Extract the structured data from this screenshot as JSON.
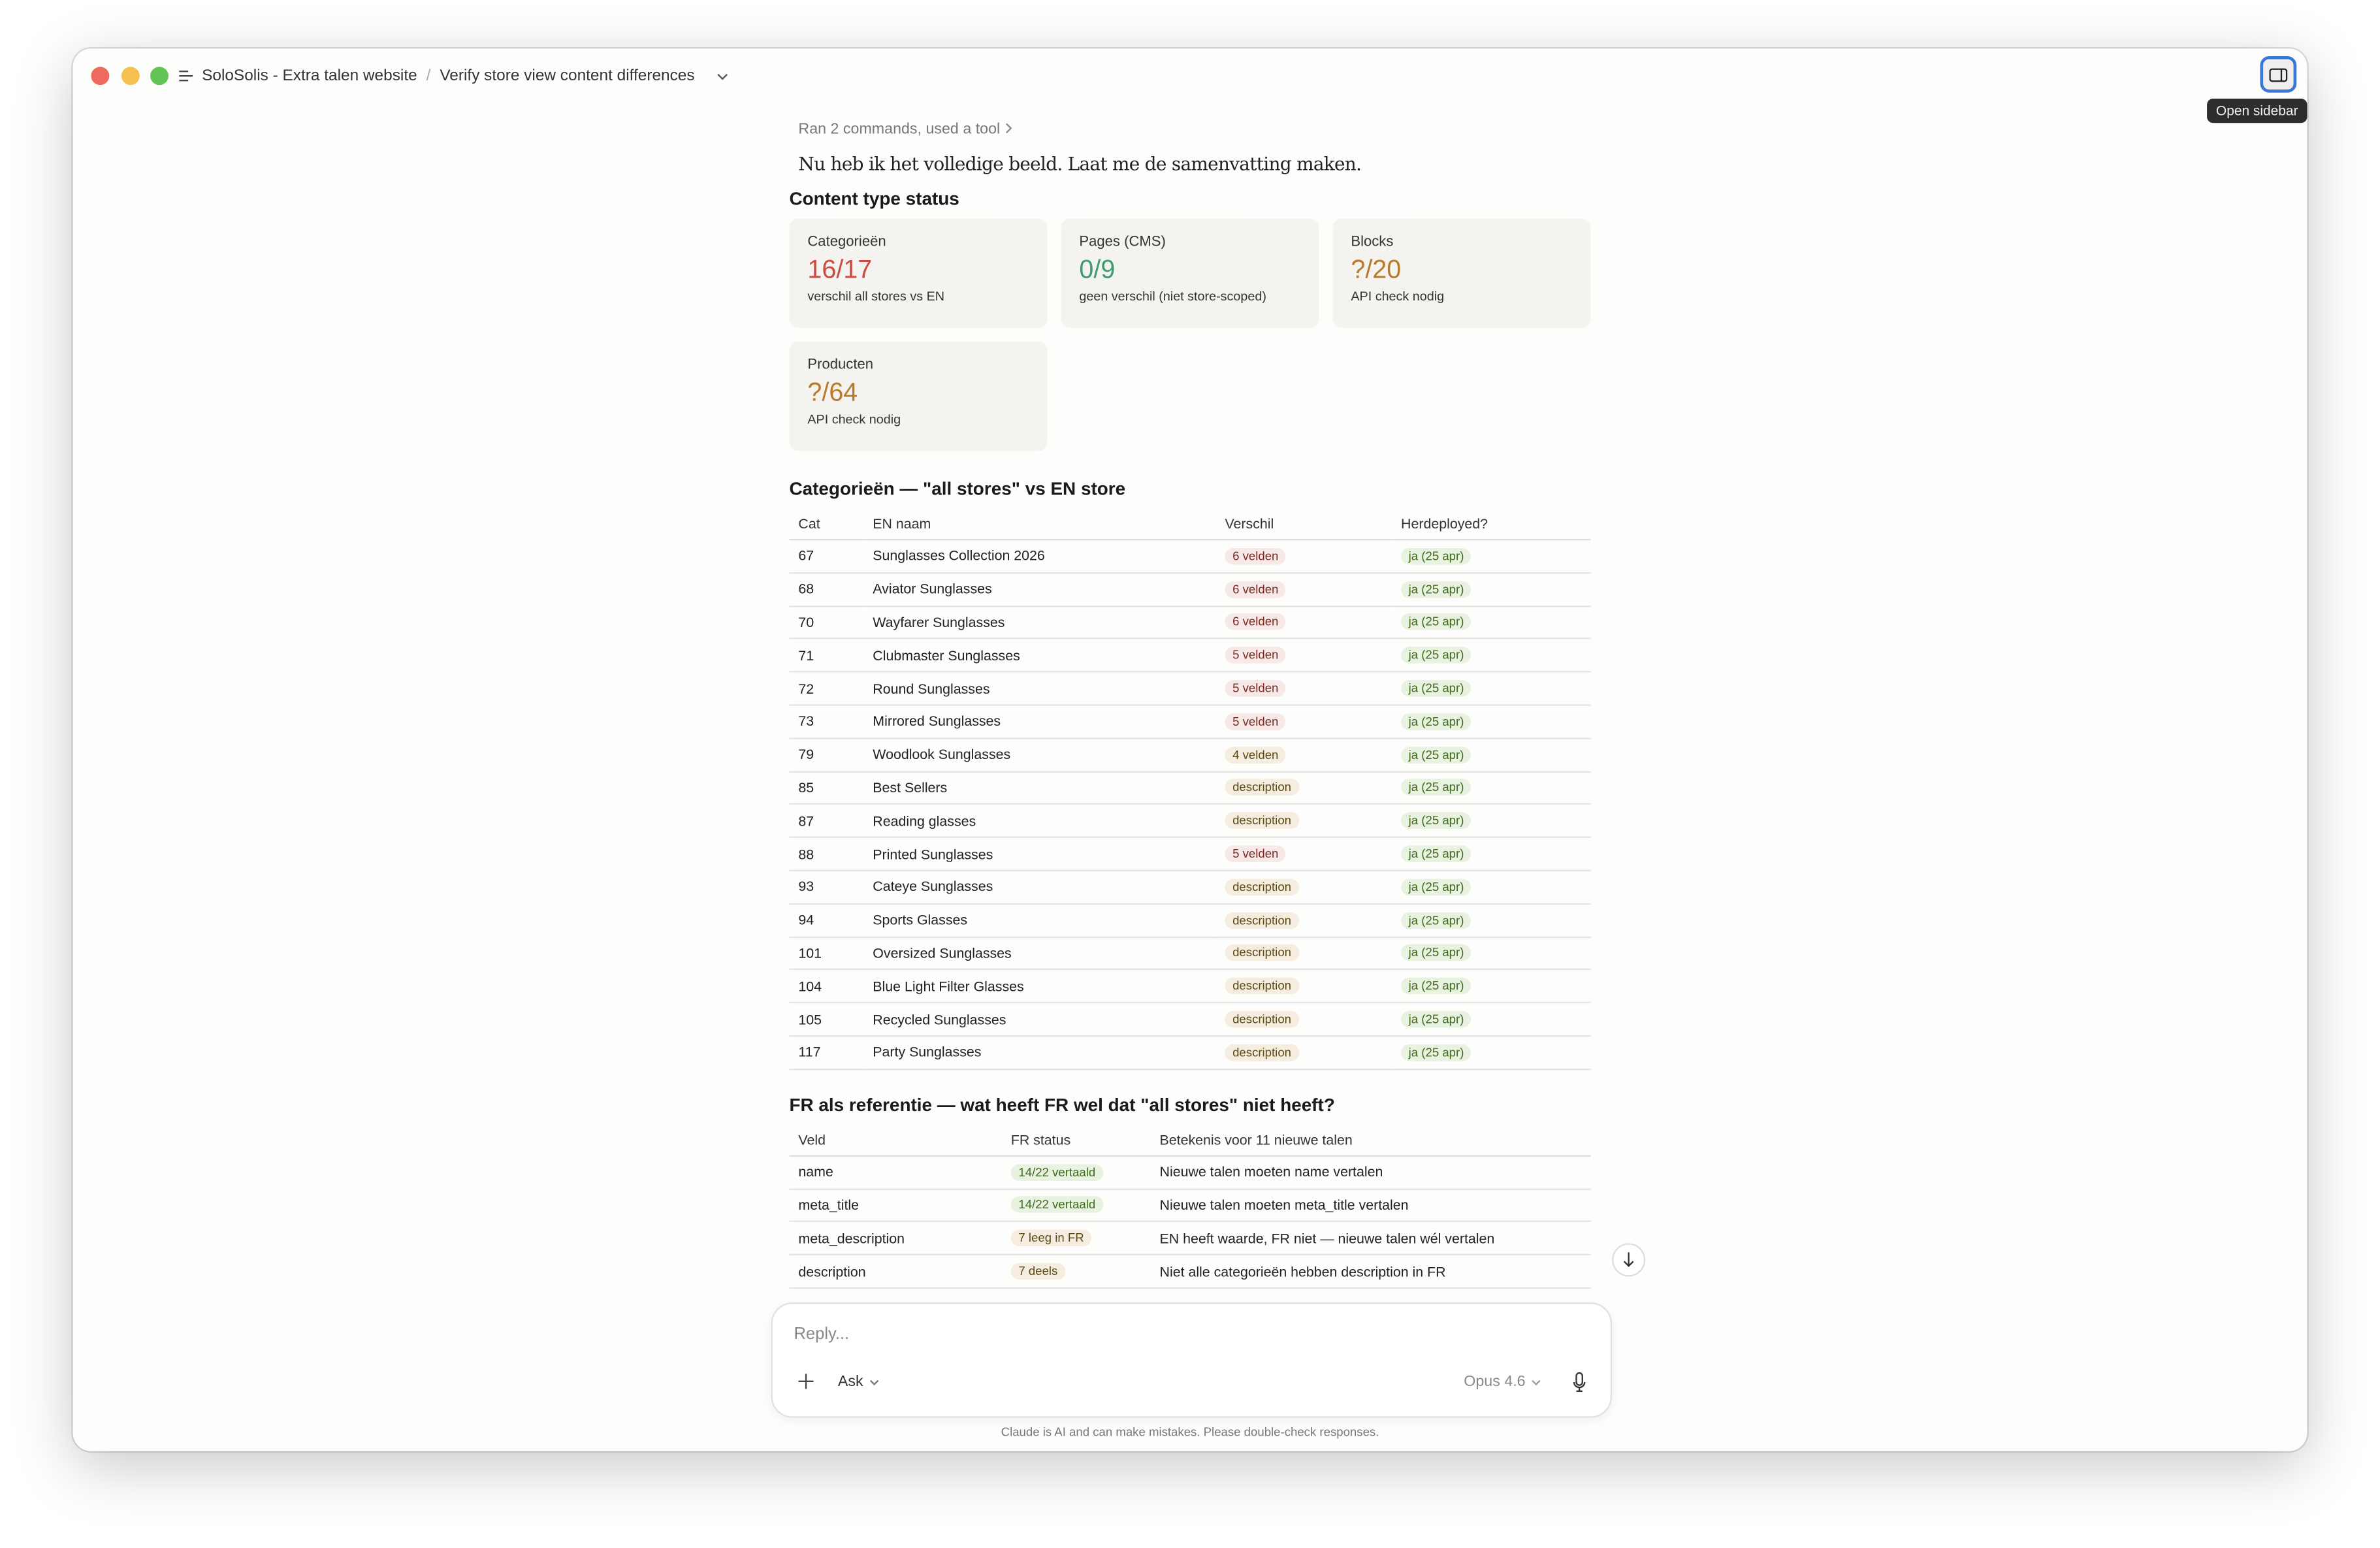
{
  "window": {
    "project": "SoloSolis - Extra talen website",
    "separator": "/",
    "chat_title": "Verify store view content differences",
    "sidebar_tooltip": "Open sidebar"
  },
  "colors": {
    "red": "#cc4a3f",
    "green": "#3f9a6e",
    "amber": "#b87a2a",
    "accent": "#3a78d8"
  },
  "tool_summary": "Ran 2 commands, used a tool",
  "lead": "Nu heb ik het volledige beeld. Laat me de samenvatting maken.",
  "status": {
    "title": "Content type status",
    "cards": [
      {
        "label": "Categorieën",
        "value": "16/17",
        "sub": "verschil all stores vs EN",
        "color": "red"
      },
      {
        "label": "Pages (CMS)",
        "value": "0/9",
        "sub": "geen verschil (niet store-scoped)",
        "color": "green"
      },
      {
        "label": "Blocks",
        "value": "?/20",
        "sub": "API check nodig",
        "color": "amber"
      },
      {
        "label": "Producten",
        "value": "?/64",
        "sub": "API check nodig",
        "color": "amber"
      }
    ]
  },
  "cat_table": {
    "title": "Categorieën — \"all stores\" vs EN store",
    "headers": [
      "Cat",
      "EN naam",
      "Verschil",
      "Herdeployed?"
    ],
    "rows": [
      [
        "67",
        "Sunglasses Collection 2026",
        "6 velden",
        "ja (25 apr)"
      ],
      [
        "68",
        "Aviator Sunglasses",
        "6 velden",
        "ja (25 apr)"
      ],
      [
        "70",
        "Wayfarer Sunglasses",
        "6 velden",
        "ja (25 apr)"
      ],
      [
        "71",
        "Clubmaster Sunglasses",
        "5 velden",
        "ja (25 apr)"
      ],
      [
        "72",
        "Round Sunglasses",
        "5 velden",
        "ja (25 apr)"
      ],
      [
        "73",
        "Mirrored Sunglasses",
        "5 velden",
        "ja (25 apr)"
      ],
      [
        "79",
        "Woodlook Sunglasses",
        "4 velden",
        "ja (25 apr)"
      ],
      [
        "85",
        "Best Sellers",
        "description",
        "ja (25 apr)"
      ],
      [
        "87",
        "Reading glasses",
        "description",
        "ja (25 apr)"
      ],
      [
        "88",
        "Printed Sunglasses",
        "5 velden",
        "ja (25 apr)"
      ],
      [
        "93",
        "Cateye Sunglasses",
        "description",
        "ja (25 apr)"
      ],
      [
        "94",
        "Sports Glasses",
        "description",
        "ja (25 apr)"
      ],
      [
        "101",
        "Oversized Sunglasses",
        "description",
        "ja (25 apr)"
      ],
      [
        "104",
        "Blue Light Filter Glasses",
        "description",
        "ja (25 apr)"
      ],
      [
        "105",
        "Recycled Sunglasses",
        "description",
        "ja (25 apr)"
      ],
      [
        "117",
        "Party Sunglasses",
        "description",
        "ja (25 apr)"
      ]
    ]
  },
  "fr_table": {
    "title": "FR als referentie — wat heeft FR wel dat \"all stores\" niet heeft?",
    "headers": [
      "Veld",
      "FR status",
      "Betekenis voor 11 nieuwe talen"
    ],
    "rows": [
      [
        "name",
        "14/22 vertaald",
        "Nieuwe talen moeten name vertalen"
      ],
      [
        "meta_title",
        "14/22 vertaald",
        "Nieuwe talen moeten meta_title vertalen"
      ],
      [
        "meta_description",
        "7 leeg in FR",
        "EN heeft waarde, FR niet — nieuwe talen wél vertalen"
      ],
      [
        "description",
        "7 deels",
        "Niet alle categorieën hebben description in FR"
      ]
    ]
  },
  "composer": {
    "placeholder": "Reply...",
    "mode": "Ask",
    "model": "Opus 4.6"
  },
  "footer": "Claude is AI and can make mistakes. Please double-check responses."
}
